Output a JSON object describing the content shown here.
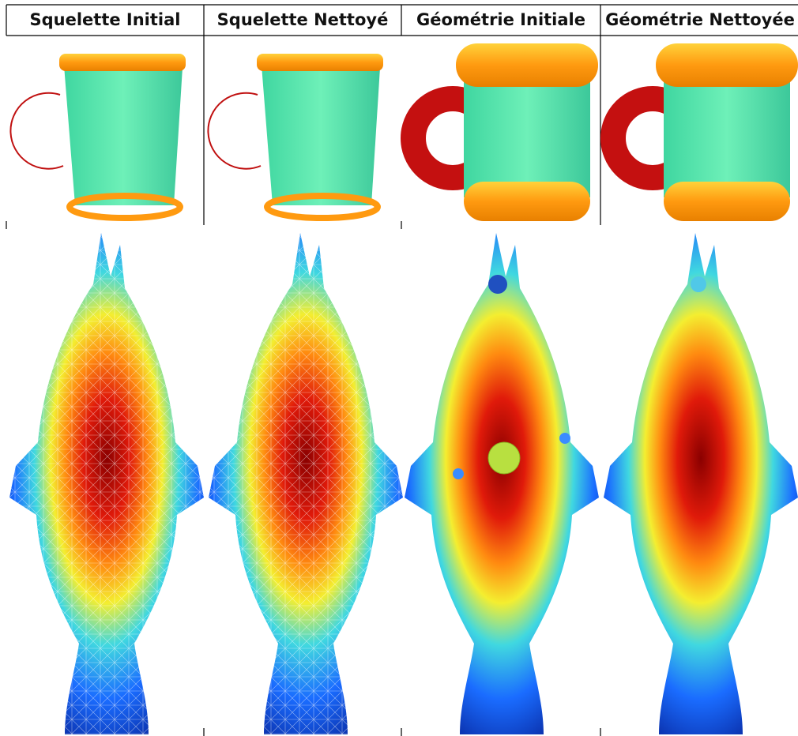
{
  "table": {
    "headers": [
      "Squelette Initial",
      "Squelette Nettoyé",
      "Géométrie Initiale",
      "Géométrie Nettoyée"
    ]
  }
}
